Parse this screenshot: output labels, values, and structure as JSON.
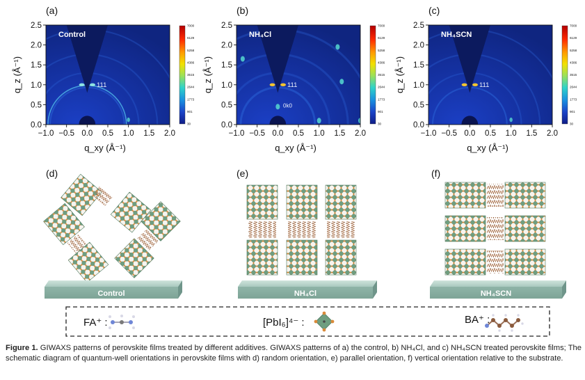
{
  "panels": [
    {
      "letter": "(a)",
      "title": "Control",
      "annot": [
        "111"
      ]
    },
    {
      "letter": "(b)",
      "title": "NH₄Cl",
      "annot": [
        "111",
        "0k0"
      ]
    },
    {
      "letter": "(c)",
      "title": "NH₄SCN",
      "annot": [
        "111"
      ]
    }
  ],
  "axes": {
    "ylabel": "q_z (Å⁻¹)",
    "xlabel": "q_xy (Å⁻¹)",
    "xticks": [
      "−1.0",
      "−0.5",
      "0.0",
      "0.5",
      "1.0",
      "1.5",
      "2.0"
    ],
    "yticks": [
      "0.0",
      "0.5",
      "1.0",
      "1.5",
      "2.0",
      "2.5"
    ],
    "xlim": [
      -1.0,
      2.0
    ],
    "ylim": [
      0.0,
      2.5
    ]
  },
  "colorbar": {
    "ticks": [
      "7000",
      "6129",
      "5258",
      "4386",
      "3515",
      "2644",
      "1773",
      "901",
      "30"
    ],
    "colors": [
      "#b40000",
      "#ff2a00",
      "#ff9a00",
      "#f2e100",
      "#9be15a",
      "#2fd3c9",
      "#1a8fe0",
      "#1b43c8",
      "#0f1d86"
    ]
  },
  "schematics": [
    {
      "letter": "(d)",
      "substrate": "Control"
    },
    {
      "letter": "(e)",
      "substrate": "NH₄Cl"
    },
    {
      "letter": "(f)",
      "substrate": "NH₄SCN"
    }
  ],
  "legend": {
    "fa": "FA⁺ :",
    "pbi": "[PbI₆]⁴⁻ :",
    "ba": "BA⁺ :"
  },
  "caption": {
    "label": "Figure 1.",
    "text": "GIWAXS patterns of perovskite films treated by different additives. GIWAXS patterns of a) the control, b) NH₄Cl, and c) NH₄SCN treated perovskite films; The schematic diagram of quantum-well orientations in perovskite films with d) random orientation, e) parallel orientation, f) vertical orientation relative to the substrate."
  }
}
